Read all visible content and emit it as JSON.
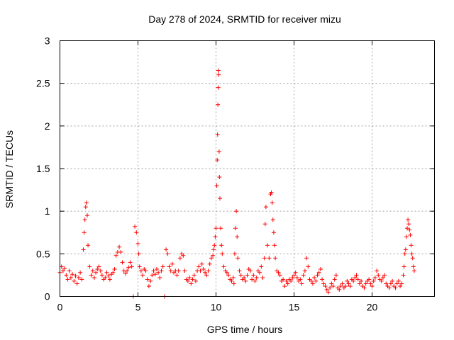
{
  "chart_data": {
    "type": "scatter",
    "title": "Day 278 of 2024, SRMTID for receiver mizu",
    "xlabel": "GPS time / hours",
    "ylabel": "SRMTID / TECUs",
    "xlim": [
      0,
      24
    ],
    "ylim": [
      0,
      3
    ],
    "grid": true,
    "marker": "+",
    "color": "#ff0000",
    "x_ticks": [
      "0",
      "5",
      "10",
      "15",
      "20"
    ],
    "y_ticks": [
      "0",
      "0.5",
      "1",
      "1.5",
      "2",
      "2.5",
      "3"
    ],
    "series": [
      {
        "name": "SRMTID",
        "points": [
          [
            0.0,
            0.28
          ],
          [
            0.1,
            0.35
          ],
          [
            0.2,
            0.3
          ],
          [
            0.3,
            0.33
          ],
          [
            0.4,
            0.25
          ],
          [
            0.5,
            0.2
          ],
          [
            0.6,
            0.3
          ],
          [
            0.7,
            0.22
          ],
          [
            0.8,
            0.26
          ],
          [
            0.9,
            0.18
          ],
          [
            1.0,
            0.24
          ],
          [
            1.1,
            0.15
          ],
          [
            1.2,
            0.22
          ],
          [
            1.3,
            0.28
          ],
          [
            1.4,
            0.2
          ],
          [
            1.5,
            0.55
          ],
          [
            1.55,
            0.75
          ],
          [
            1.6,
            0.9
          ],
          [
            1.65,
            1.05
          ],
          [
            1.7,
            1.1
          ],
          [
            1.75,
            0.95
          ],
          [
            1.8,
            0.6
          ],
          [
            1.9,
            0.35
          ],
          [
            2.0,
            0.25
          ],
          [
            2.1,
            0.3
          ],
          [
            2.2,
            0.22
          ],
          [
            2.3,
            0.28
          ],
          [
            2.4,
            0.32
          ],
          [
            2.5,
            0.35
          ],
          [
            2.6,
            0.3
          ],
          [
            2.7,
            0.25
          ],
          [
            2.8,
            0.2
          ],
          [
            2.9,
            0.22
          ],
          [
            3.0,
            0.28
          ],
          [
            3.1,
            0.24
          ],
          [
            3.2,
            0.2
          ],
          [
            3.3,
            0.26
          ],
          [
            3.4,
            0.28
          ],
          [
            3.5,
            0.32
          ],
          [
            3.6,
            0.48
          ],
          [
            3.7,
            0.52
          ],
          [
            3.8,
            0.58
          ],
          [
            3.9,
            0.52
          ],
          [
            4.0,
            0.4
          ],
          [
            4.1,
            0.3
          ],
          [
            4.2,
            0.27
          ],
          [
            4.3,
            0.3
          ],
          [
            4.4,
            0.34
          ],
          [
            4.5,
            0.4
          ],
          [
            4.6,
            0.35
          ],
          [
            4.7,
            0.0
          ],
          [
            4.8,
            0.82
          ],
          [
            4.9,
            0.75
          ],
          [
            5.0,
            0.62
          ],
          [
            5.05,
            0.5
          ],
          [
            5.1,
            0.35
          ],
          [
            5.2,
            0.3
          ],
          [
            5.3,
            0.25
          ],
          [
            5.4,
            0.32
          ],
          [
            5.5,
            0.3
          ],
          [
            5.6,
            0.2
          ],
          [
            5.7,
            0.12
          ],
          [
            5.8,
            0.18
          ],
          [
            5.9,
            0.25
          ],
          [
            6.0,
            0.3
          ],
          [
            6.1,
            0.26
          ],
          [
            6.2,
            0.32
          ],
          [
            6.3,
            0.28
          ],
          [
            6.4,
            0.22
          ],
          [
            6.5,
            0.3
          ],
          [
            6.6,
            0.35
          ],
          [
            6.7,
            0.0
          ],
          [
            6.8,
            0.55
          ],
          [
            6.9,
            0.5
          ],
          [
            7.0,
            0.35
          ],
          [
            7.1,
            0.3
          ],
          [
            7.2,
            0.38
          ],
          [
            7.3,
            0.28
          ],
          [
            7.4,
            0.3
          ],
          [
            7.5,
            0.25
          ],
          [
            7.6,
            0.3
          ],
          [
            7.7,
            0.45
          ],
          [
            7.8,
            0.5
          ],
          [
            7.9,
            0.48
          ],
          [
            8.0,
            0.3
          ],
          [
            8.1,
            0.2
          ],
          [
            8.2,
            0.18
          ],
          [
            8.3,
            0.22
          ],
          [
            8.4,
            0.15
          ],
          [
            8.5,
            0.2
          ],
          [
            8.6,
            0.25
          ],
          [
            8.7,
            0.18
          ],
          [
            8.8,
            0.3
          ],
          [
            8.9,
            0.35
          ],
          [
            9.0,
            0.3
          ],
          [
            9.1,
            0.38
          ],
          [
            9.2,
            0.32
          ],
          [
            9.3,
            0.28
          ],
          [
            9.4,
            0.25
          ],
          [
            9.5,
            0.3
          ],
          [
            9.6,
            0.38
          ],
          [
            9.7,
            0.45
          ],
          [
            9.8,
            0.48
          ],
          [
            9.85,
            0.55
          ],
          [
            9.9,
            0.6
          ],
          [
            9.95,
            0.7
          ],
          [
            10.0,
            0.8
          ],
          [
            10.05,
            1.3
          ],
          [
            10.08,
            1.6
          ],
          [
            10.1,
            1.9
          ],
          [
            10.12,
            2.25
          ],
          [
            10.14,
            2.45
          ],
          [
            10.15,
            2.65
          ],
          [
            10.17,
            2.6
          ],
          [
            10.2,
            1.7
          ],
          [
            10.22,
            1.4
          ],
          [
            10.25,
            1.15
          ],
          [
            10.3,
            0.8
          ],
          [
            10.35,
            0.6
          ],
          [
            10.4,
            0.5
          ],
          [
            10.5,
            0.35
          ],
          [
            10.6,
            0.3
          ],
          [
            10.7,
            0.28
          ],
          [
            10.8,
            0.25
          ],
          [
            10.9,
            0.2
          ],
          [
            11.0,
            0.18
          ],
          [
            11.1,
            0.22
          ],
          [
            11.15,
            0.15
          ],
          [
            11.2,
            0.5
          ],
          [
            11.25,
            0.8
          ],
          [
            11.3,
            1.0
          ],
          [
            11.35,
            0.7
          ],
          [
            11.4,
            0.45
          ],
          [
            11.5,
            0.3
          ],
          [
            11.6,
            0.25
          ],
          [
            11.7,
            0.2
          ],
          [
            11.8,
            0.22
          ],
          [
            11.9,
            0.18
          ],
          [
            12.0,
            0.25
          ],
          [
            12.1,
            0.32
          ],
          [
            12.2,
            0.3
          ],
          [
            12.3,
            0.2
          ],
          [
            12.4,
            0.25
          ],
          [
            12.5,
            0.18
          ],
          [
            12.6,
            0.22
          ],
          [
            12.7,
            0.3
          ],
          [
            12.8,
            0.28
          ],
          [
            12.9,
            0.35
          ],
          [
            13.0,
            0.22
          ],
          [
            13.1,
            0.45
          ],
          [
            13.15,
            0.85
          ],
          [
            13.2,
            1.05
          ],
          [
            13.3,
            0.6
          ],
          [
            13.4,
            0.45
          ],
          [
            13.5,
            1.2
          ],
          [
            13.55,
            1.22
          ],
          [
            13.6,
            1.1
          ],
          [
            13.65,
            0.9
          ],
          [
            13.7,
            0.75
          ],
          [
            13.75,
            0.6
          ],
          [
            13.8,
            0.45
          ],
          [
            13.9,
            0.3
          ],
          [
            14.0,
            0.28
          ],
          [
            14.1,
            0.25
          ],
          [
            14.2,
            0.18
          ],
          [
            14.3,
            0.2
          ],
          [
            14.4,
            0.12
          ],
          [
            14.5,
            0.18
          ],
          [
            14.6,
            0.15
          ],
          [
            14.7,
            0.2
          ],
          [
            14.8,
            0.18
          ],
          [
            14.9,
            0.22
          ],
          [
            15.0,
            0.25
          ],
          [
            15.1,
            0.28
          ],
          [
            15.2,
            0.22
          ],
          [
            15.3,
            0.18
          ],
          [
            15.4,
            0.2
          ],
          [
            15.5,
            0.15
          ],
          [
            15.6,
            0.25
          ],
          [
            15.7,
            0.3
          ],
          [
            15.8,
            0.45
          ],
          [
            15.9,
            0.35
          ],
          [
            16.0,
            0.2
          ],
          [
            16.1,
            0.18
          ],
          [
            16.2,
            0.15
          ],
          [
            16.3,
            0.22
          ],
          [
            16.4,
            0.18
          ],
          [
            16.5,
            0.25
          ],
          [
            16.6,
            0.28
          ],
          [
            16.7,
            0.32
          ],
          [
            16.8,
            0.2
          ],
          [
            16.9,
            0.15
          ],
          [
            17.0,
            0.12
          ],
          [
            17.1,
            0.08
          ],
          [
            17.2,
            0.05
          ],
          [
            17.3,
            0.1
          ],
          [
            17.4,
            0.15
          ],
          [
            17.5,
            0.12
          ],
          [
            17.6,
            0.2
          ],
          [
            17.7,
            0.25
          ],
          [
            17.8,
            0.1
          ],
          [
            17.9,
            0.08
          ],
          [
            18.0,
            0.12
          ],
          [
            18.1,
            0.15
          ],
          [
            18.2,
            0.1
          ],
          [
            18.3,
            0.12
          ],
          [
            18.4,
            0.18
          ],
          [
            18.5,
            0.15
          ],
          [
            18.6,
            0.12
          ],
          [
            18.7,
            0.2
          ],
          [
            18.8,
            0.18
          ],
          [
            18.9,
            0.22
          ],
          [
            19.0,
            0.25
          ],
          [
            19.1,
            0.2
          ],
          [
            19.2,
            0.15
          ],
          [
            19.3,
            0.18
          ],
          [
            19.4,
            0.12
          ],
          [
            19.5,
            0.1
          ],
          [
            19.6,
            0.15
          ],
          [
            19.7,
            0.18
          ],
          [
            19.8,
            0.2
          ],
          [
            19.9,
            0.15
          ],
          [
            20.0,
            0.12
          ],
          [
            20.1,
            0.18
          ],
          [
            20.2,
            0.22
          ],
          [
            20.3,
            0.3
          ],
          [
            20.4,
            0.25
          ],
          [
            20.5,
            0.2
          ],
          [
            20.6,
            0.18
          ],
          [
            20.7,
            0.22
          ],
          [
            20.8,
            0.25
          ],
          [
            20.9,
            0.15
          ],
          [
            21.0,
            0.12
          ],
          [
            21.1,
            0.1
          ],
          [
            21.2,
            0.15
          ],
          [
            21.3,
            0.18
          ],
          [
            21.4,
            0.12
          ],
          [
            21.5,
            0.1
          ],
          [
            21.6,
            0.15
          ],
          [
            21.7,
            0.18
          ],
          [
            21.8,
            0.12
          ],
          [
            21.9,
            0.15
          ],
          [
            22.0,
            0.25
          ],
          [
            22.05,
            0.35
          ],
          [
            22.1,
            0.5
          ],
          [
            22.15,
            0.55
          ],
          [
            22.2,
            0.7
          ],
          [
            22.25,
            0.8
          ],
          [
            22.3,
            0.9
          ],
          [
            22.35,
            0.85
          ],
          [
            22.4,
            0.78
          ],
          [
            22.45,
            0.72
          ],
          [
            22.5,
            0.6
          ],
          [
            22.55,
            0.5
          ],
          [
            22.6,
            0.45
          ],
          [
            22.65,
            0.35
          ],
          [
            22.7,
            0.3
          ]
        ]
      }
    ]
  }
}
